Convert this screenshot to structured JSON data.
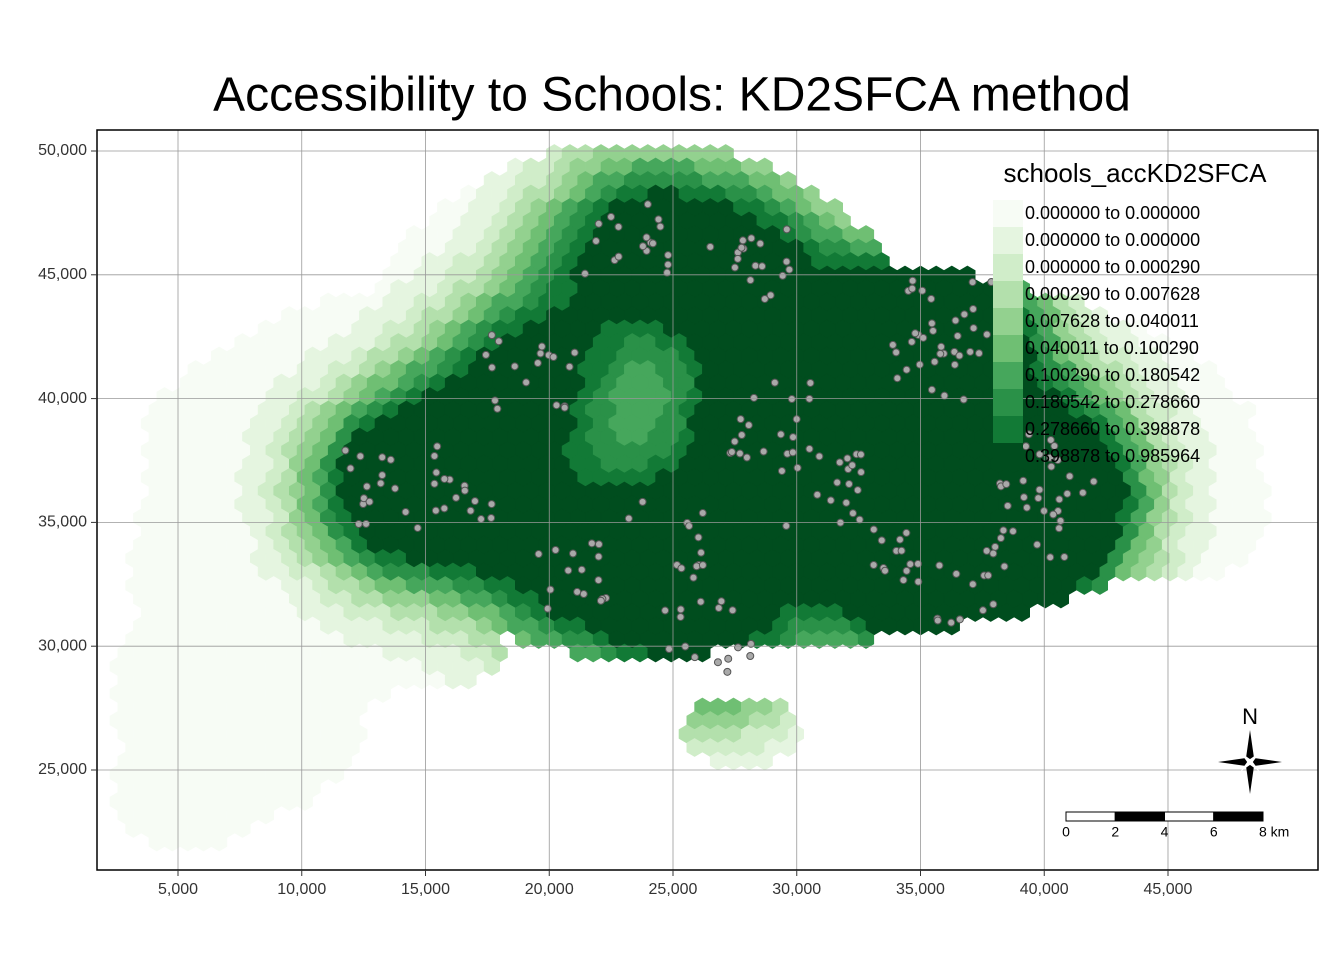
{
  "map": {
    "title": "Accessibility to Schools: KD2SFCA method",
    "xlim": [
      1727,
      51061
    ],
    "ylim": [
      20961,
      50848
    ],
    "xticks": [
      {
        "value": 5000,
        "label": "5,000"
      },
      {
        "value": 10000,
        "label": "10,000"
      },
      {
        "value": 15000,
        "label": "15,000"
      },
      {
        "value": 20000,
        "label": "20,000"
      },
      {
        "value": 25000,
        "label": "25,000"
      },
      {
        "value": 30000,
        "label": "30,000"
      },
      {
        "value": 35000,
        "label": "35,000"
      },
      {
        "value": 40000,
        "label": "40,000"
      },
      {
        "value": 45000,
        "label": "45,000"
      }
    ],
    "yticks": [
      {
        "value": 25000,
        "label": "25,000"
      },
      {
        "value": 30000,
        "label": "30,000"
      },
      {
        "value": 35000,
        "label": "35,000"
      },
      {
        "value": 40000,
        "label": "40,000"
      },
      {
        "value": 45000,
        "label": "45,000"
      },
      {
        "value": 50000,
        "label": "50,000"
      }
    ],
    "grid": true,
    "legend": {
      "title": "schools_accKD2SFCA",
      "labels": [
        "0.000000 to 0.000000",
        "0.000000 to 0.000000",
        "0.000000 to 0.000290",
        "0.000290 to 0.007628",
        "0.007628 to 0.040011",
        "0.040011 to 0.100290",
        "0.100290 to 0.180542",
        "0.180542 to 0.278660",
        "0.278660 to 0.398878",
        "0.398878 to 0.985964"
      ],
      "colors": [
        "#f7fcf5",
        "#e5f5e0",
        "#d0edc9",
        "#b3e0ac",
        "#93d18f",
        "#6fbf73",
        "#46a75c",
        "#2a9148",
        "#127a36",
        "#004d1e"
      ]
    },
    "scale_bar": {
      "ticks": [
        0,
        2,
        4,
        6,
        {
          "value": 8,
          "label": "8 km"
        }
      ]
    },
    "north_arrow": "N"
  }
}
